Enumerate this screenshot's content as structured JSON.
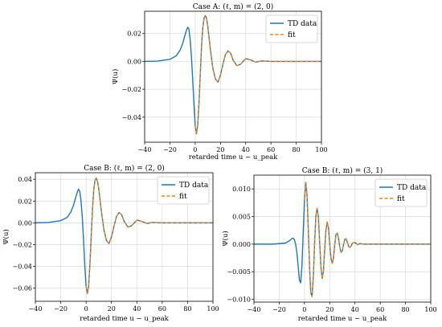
{
  "chart_data": [
    {
      "type": "line",
      "title": "Case A:  (ℓ, m) = (2, 0)",
      "xlabel": "retarded time  u − u_peak",
      "ylabel": "Ψ(u)",
      "xlim": [
        -40,
        100
      ],
      "ylim": [
        -0.058,
        0.036
      ],
      "xticks": [
        -40,
        -20,
        0,
        20,
        40,
        60,
        80,
        100
      ],
      "yticks": [
        -0.04,
        -0.02,
        0.0,
        0.02
      ],
      "ytick_labels": [
        "−0.04",
        "−0.02",
        "0.00",
        "0.02"
      ],
      "xtick_labels": [
        "−40",
        "−20",
        "0",
        "20",
        "40",
        "60",
        "80",
        "100"
      ],
      "grid": true,
      "legend_position": "top-right",
      "series": [
        {
          "name": "TD data",
          "style": "solid",
          "color": "#1f77b4",
          "x": [
            -40,
            -30,
            -20,
            -15,
            -12,
            -10,
            -8,
            -7,
            -6,
            -5,
            -4,
            -3,
            -2,
            -1,
            0,
            1,
            2,
            3,
            4,
            5,
            6,
            7,
            8,
            9,
            10,
            11,
            12,
            14,
            16,
            18,
            20,
            22,
            24,
            26,
            28,
            30,
            33,
            36,
            40,
            44,
            48,
            52,
            56,
            60,
            70,
            80,
            100
          ],
          "y": [
            0.0,
            0.0002,
            0.0015,
            0.004,
            0.008,
            0.0125,
            0.019,
            0.022,
            0.0245,
            0.0235,
            0.016,
            0.004,
            -0.012,
            -0.03,
            -0.046,
            -0.052,
            -0.046,
            -0.03,
            -0.01,
            0.01,
            0.024,
            0.031,
            0.033,
            0.031,
            0.025,
            0.017,
            0.009,
            -0.005,
            -0.0125,
            -0.015,
            -0.01,
            -0.002,
            0.005,
            0.0075,
            0.006,
            0.001,
            -0.003,
            -0.002,
            0.002,
            0.001,
            -0.0005,
            0.0003,
            0.0002,
            0.0,
            0.0,
            0.0,
            0.0
          ]
        },
        {
          "name": "fit",
          "style": "dashed",
          "color": "#ff7f0e",
          "x": [
            0,
            1,
            2,
            3,
            4,
            5,
            6,
            7,
            8,
            9,
            10,
            11,
            12,
            14,
            16,
            18,
            20,
            22,
            24,
            26,
            28,
            30,
            33,
            36,
            40,
            44,
            48,
            52,
            56,
            60,
            70,
            80,
            100
          ],
          "y": [
            -0.046,
            -0.052,
            -0.046,
            -0.03,
            -0.01,
            0.01,
            0.024,
            0.031,
            0.033,
            0.031,
            0.025,
            0.017,
            0.009,
            -0.005,
            -0.0125,
            -0.015,
            -0.01,
            -0.002,
            0.005,
            0.0075,
            0.006,
            0.001,
            -0.003,
            -0.002,
            0.002,
            0.001,
            -0.0005,
            0.0003,
            0.0002,
            0.0,
            0.0,
            0.0,
            0.0
          ]
        }
      ]
    },
    {
      "type": "line",
      "title": "Case B:  (ℓ, m) = (2, 0)",
      "xlabel": "retarded time  u − u_peak",
      "ylabel": "Ψ(u)",
      "xlim": [
        -40,
        100
      ],
      "ylim": [
        -0.072,
        0.046
      ],
      "xticks": [
        -40,
        -20,
        0,
        20,
        40,
        60,
        80,
        100
      ],
      "yticks": [
        -0.06,
        -0.04,
        -0.02,
        0.0,
        0.02,
        0.04
      ],
      "ytick_labels": [
        "−0.06",
        "−0.04",
        "−0.02",
        "0.00",
        "0.02",
        "0.04"
      ],
      "xtick_labels": [
        "−40",
        "−20",
        "0",
        "20",
        "40",
        "60",
        "80",
        "100"
      ],
      "grid": true,
      "legend_position": "top-right",
      "series": [
        {
          "name": "TD data",
          "style": "solid",
          "color": "#1f77b4",
          "x": [
            -40,
            -30,
            -20,
            -15,
            -12,
            -10,
            -8,
            -7,
            -6,
            -5,
            -4,
            -3,
            -2,
            -1,
            0,
            1,
            2,
            3,
            4,
            5,
            6,
            7,
            8,
            9,
            10,
            11,
            12,
            14,
            16,
            18,
            20,
            22,
            24,
            26,
            28,
            30,
            33,
            36,
            40,
            44,
            48,
            52,
            56,
            60,
            70,
            80,
            100
          ],
          "y": [
            0.0,
            0.0003,
            0.002,
            0.005,
            0.01,
            0.016,
            0.024,
            0.028,
            0.031,
            0.029,
            0.02,
            0.005,
            -0.016,
            -0.04,
            -0.058,
            -0.065,
            -0.058,
            -0.038,
            -0.013,
            0.012,
            0.03,
            0.039,
            0.041,
            0.038,
            0.031,
            0.021,
            0.011,
            -0.006,
            -0.016,
            -0.019,
            -0.013,
            -0.003,
            0.006,
            0.0095,
            0.0075,
            0.0015,
            -0.004,
            -0.0025,
            0.0025,
            0.0013,
            -0.0006,
            0.0004,
            0.0002,
            0.0,
            0.0,
            0.0,
            0.0
          ]
        },
        {
          "name": "fit",
          "style": "dashed",
          "color": "#ff7f0e",
          "x": [
            0,
            1,
            2,
            3,
            4,
            5,
            6,
            7,
            8,
            9,
            10,
            11,
            12,
            14,
            16,
            18,
            20,
            22,
            24,
            26,
            28,
            30,
            33,
            36,
            40,
            44,
            48,
            52,
            56,
            60,
            70,
            80,
            100
          ],
          "y": [
            -0.058,
            -0.065,
            -0.058,
            -0.038,
            -0.013,
            0.012,
            0.03,
            0.039,
            0.041,
            0.038,
            0.031,
            0.021,
            0.011,
            -0.006,
            -0.016,
            -0.019,
            -0.013,
            -0.003,
            0.006,
            0.0095,
            0.0075,
            0.0015,
            -0.004,
            -0.0025,
            0.0025,
            0.0013,
            -0.0006,
            0.0004,
            0.0002,
            0.0,
            0.0,
            0.0,
            0.0
          ]
        }
      ]
    },
    {
      "type": "line",
      "title": "Case B:  (ℓ, m) = (3, 1)",
      "xlabel": "retarded time  u − u_peak",
      "ylabel": "Ψ(u)",
      "xlim": [
        -40,
        100
      ],
      "ylim": [
        -0.0105,
        0.0125
      ],
      "xticks": [
        -40,
        -20,
        0,
        20,
        40,
        60,
        80,
        100
      ],
      "yticks": [
        -0.01,
        -0.005,
        0.0,
        0.005,
        0.01
      ],
      "ytick_labels": [
        "−0.010",
        "−0.005",
        "0.000",
        "0.005",
        "0.010"
      ],
      "xtick_labels": [
        "−40",
        "−20",
        "0",
        "20",
        "40",
        "60",
        "80",
        "100"
      ],
      "grid": true,
      "legend_position": "top-right",
      "series": [
        {
          "name": "TD data",
          "style": "solid",
          "color": "#1f77b4",
          "x": [
            -40,
            -25,
            -15,
            -12,
            -10,
            -9,
            -8,
            -7,
            -6,
            -5,
            -4,
            -3,
            -2,
            -1,
            0,
            1,
            2,
            3,
            4,
            5,
            6,
            7,
            8,
            9,
            10,
            11,
            12,
            13,
            14,
            15,
            16,
            17,
            18,
            19,
            20,
            21,
            22,
            23,
            24,
            25,
            26,
            27,
            28,
            29,
            30,
            31,
            32,
            33,
            34,
            35,
            36,
            37,
            38,
            40,
            42,
            44,
            46,
            48,
            50,
            55,
            60,
            80,
            100
          ],
          "y": [
            0.0,
            0.0,
            0.0002,
            0.0006,
            0.001,
            0.0011,
            0.0008,
            0.0,
            -0.0015,
            -0.004,
            -0.0065,
            -0.007,
            -0.004,
            0.002,
            0.008,
            0.0112,
            0.009,
            0.003,
            -0.004,
            -0.0088,
            -0.0095,
            -0.006,
            0.0,
            0.005,
            0.0065,
            0.005,
            0.0005,
            -0.004,
            -0.0062,
            -0.005,
            -0.001,
            0.0025,
            0.004,
            0.003,
            0.0,
            -0.0025,
            -0.0035,
            -0.0025,
            0.0,
            0.0018,
            0.002,
            0.001,
            -0.0006,
            -0.0015,
            -0.0012,
            0.0,
            0.0009,
            0.001,
            0.0003,
            -0.0004,
            -0.0006,
            -0.0003,
            0.0002,
            0.0003,
            -0.0001,
            0.0001,
            0.0,
            0.0,
            0.0,
            0.0,
            0.0,
            0.0,
            0.0
          ]
        },
        {
          "name": "fit",
          "style": "dashed",
          "color": "#ff7f0e",
          "x": [
            0,
            1,
            2,
            3,
            4,
            5,
            6,
            7,
            8,
            9,
            10,
            11,
            12,
            13,
            14,
            15,
            16,
            17,
            18,
            19,
            20,
            21,
            22,
            23,
            24,
            25,
            26,
            27,
            28,
            29,
            30,
            31,
            32,
            33,
            34,
            35,
            36,
            37,
            38,
            40,
            42,
            44,
            46,
            48,
            50,
            55,
            60,
            80,
            100
          ],
          "y": [
            0.008,
            0.0112,
            0.009,
            0.003,
            -0.004,
            -0.0088,
            -0.0095,
            -0.006,
            0.0,
            0.005,
            0.0065,
            0.005,
            0.0005,
            -0.004,
            -0.0062,
            -0.005,
            -0.001,
            0.0025,
            0.004,
            0.003,
            0.0,
            -0.0025,
            -0.0035,
            -0.0025,
            0.0,
            0.0018,
            0.002,
            0.001,
            -0.0006,
            -0.0015,
            -0.0012,
            0.0,
            0.0009,
            0.001,
            0.0003,
            -0.0004,
            -0.0006,
            -0.0003,
            0.0002,
            0.0003,
            -0.0001,
            0.0001,
            0.0,
            0.0,
            0.0,
            0.0,
            0.0,
            0.0,
            0.0
          ]
        }
      ]
    }
  ]
}
